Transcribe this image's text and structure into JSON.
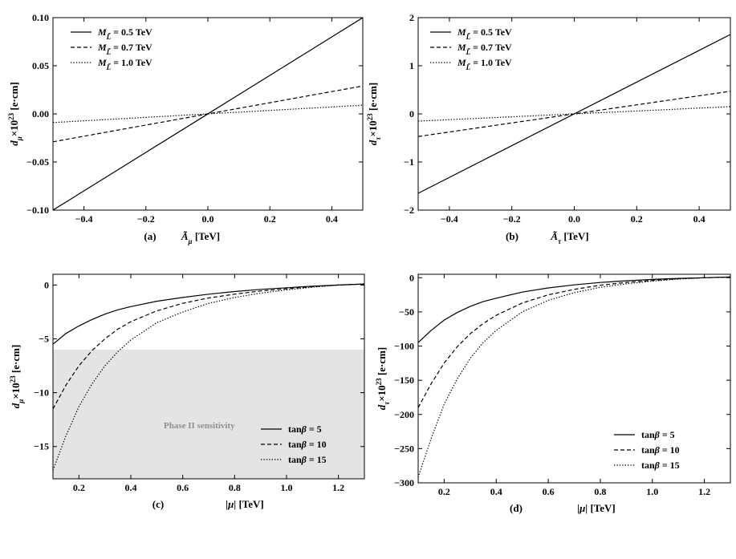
{
  "colors": {
    "curve": "#000000",
    "shade": "#e4e4e4",
    "note": "#909090"
  },
  "chart_data": [
    {
      "type": "line",
      "panel_label": "(a)",
      "xlabel_sym": "Ã",
      "xlabel_sub": "μ",
      "xlabel_unit": "[TeV]",
      "ylabel_sym": "d",
      "ylabel_sub": "μ",
      "ylabel_mid": "×10",
      "ylabel_exp": "23",
      "ylabel_unit": "[e·cm]",
      "xlim": [
        -0.5,
        0.5
      ],
      "ylim": [
        -0.1,
        0.1
      ],
      "xticks": [
        "−0.4",
        "−0.2",
        "0.0",
        "0.2",
        "0.4"
      ],
      "yticks": [
        "−0.10",
        "−0.05",
        "0.00",
        "0.05",
        "0.10"
      ],
      "series": [
        {
          "name_pre": "M",
          "name_sub": "L̃",
          "name_post": " = 0.5 TeV",
          "style": "solid",
          "x": [
            -0.5,
            0.5
          ],
          "y": [
            -0.1,
            0.1
          ]
        },
        {
          "name_pre": "M",
          "name_sub": "L̃",
          "name_post": " = 0.7 TeV",
          "style": "dashed",
          "x": [
            -0.5,
            0.5
          ],
          "y": [
            -0.029,
            0.029
          ]
        },
        {
          "name_pre": "M",
          "name_sub": "L̃",
          "name_post": " = 1.0 TeV",
          "style": "dotted",
          "x": [
            -0.5,
            0.5
          ],
          "y": [
            -0.009,
            0.009
          ]
        }
      ],
      "legend": "top-left"
    },
    {
      "type": "line",
      "panel_label": "(b)",
      "xlabel_sym": "Ã",
      "xlabel_sub": "τ",
      "xlabel_unit": "[TeV]",
      "ylabel_sym": "d",
      "ylabel_sub": "τ",
      "ylabel_mid": "×10",
      "ylabel_exp": "23",
      "ylabel_unit": "[e·cm]",
      "xlim": [
        -0.5,
        0.5
      ],
      "ylim": [
        -2,
        2
      ],
      "xticks": [
        "−0.4",
        "−0.2",
        "0.0",
        "0.2",
        "0.4"
      ],
      "yticks": [
        "−2",
        "−1",
        "0",
        "1",
        "2"
      ],
      "series": [
        {
          "name_pre": "M",
          "name_sub": "L̃",
          "name_post": " = 0.5 TeV",
          "style": "solid",
          "x": [
            -0.5,
            0.5
          ],
          "y": [
            -1.65,
            1.65
          ]
        },
        {
          "name_pre": "M",
          "name_sub": "L̃",
          "name_post": " = 0.7 TeV",
          "style": "dashed",
          "x": [
            -0.5,
            0.5
          ],
          "y": [
            -0.47,
            0.47
          ]
        },
        {
          "name_pre": "M",
          "name_sub": "L̃",
          "name_post": " = 1.0 TeV",
          "style": "dotted",
          "x": [
            -0.5,
            0.5
          ],
          "y": [
            -0.15,
            0.15
          ]
        }
      ],
      "legend": "top-left"
    },
    {
      "type": "line",
      "panel_label": "(c)",
      "xlabel_sym": "|μ|",
      "xlabel_sub": "",
      "xlabel_unit": "[TeV]",
      "ylabel_sym": "d",
      "ylabel_sub": "μ",
      "ylabel_mid": "×10",
      "ylabel_exp": "23",
      "ylabel_unit": "[e·cm]",
      "xlim": [
        0.1,
        1.3
      ],
      "ylim": [
        -18,
        1
      ],
      "xticks": [
        "0.2",
        "0.4",
        "0.6",
        "0.8",
        "1.0",
        "1.2"
      ],
      "yticks": [
        "−15",
        "−10",
        "−5",
        "0"
      ],
      "shaded_region": {
        "y_from": -18,
        "y_to": -6,
        "label": "Phase II sensitivity"
      },
      "series": [
        {
          "name_pre": "tan",
          "name_sub": "β",
          "name_post": " = 5",
          "style": "solid",
          "x": [
            0.1,
            0.15,
            0.2,
            0.25,
            0.3,
            0.35,
            0.4,
            0.5,
            0.6,
            0.7,
            0.8,
            0.9,
            1.0,
            1.1,
            1.2,
            1.3
          ],
          "y": [
            -5.5,
            -4.5,
            -3.8,
            -3.2,
            -2.7,
            -2.3,
            -2.0,
            -1.5,
            -1.15,
            -0.85,
            -0.6,
            -0.4,
            -0.25,
            -0.1,
            0.0,
            0.1
          ]
        },
        {
          "name_pre": "tan",
          "name_sub": "β",
          "name_post": " = 10",
          "style": "dashed",
          "x": [
            0.1,
            0.15,
            0.2,
            0.25,
            0.3,
            0.35,
            0.4,
            0.5,
            0.6,
            0.7,
            0.8,
            0.9,
            1.0,
            1.1,
            1.2,
            1.3
          ],
          "y": [
            -11.5,
            -9.3,
            -7.5,
            -6.1,
            -5.0,
            -4.1,
            -3.4,
            -2.4,
            -1.7,
            -1.2,
            -0.85,
            -0.55,
            -0.35,
            -0.15,
            0.0,
            0.1
          ]
        },
        {
          "name_pre": "tan",
          "name_sub": "β",
          "name_post": " = 15",
          "style": "dotted",
          "x": [
            0.1,
            0.15,
            0.2,
            0.25,
            0.3,
            0.35,
            0.4,
            0.5,
            0.6,
            0.7,
            0.8,
            0.9,
            1.0,
            1.1,
            1.2,
            1.3
          ],
          "y": [
            -17.2,
            -14.0,
            -11.3,
            -9.2,
            -7.5,
            -6.2,
            -5.1,
            -3.5,
            -2.5,
            -1.7,
            -1.15,
            -0.75,
            -0.45,
            -0.2,
            0.0,
            0.1
          ]
        }
      ],
      "legend": "bottom-right"
    },
    {
      "type": "line",
      "panel_label": "(d)",
      "xlabel_sym": "|μ|",
      "xlabel_sub": "",
      "xlabel_unit": "[TeV]",
      "ylabel_sym": "d",
      "ylabel_sub": "τ",
      "ylabel_mid": "×10",
      "ylabel_exp": "23",
      "ylabel_unit": "[e·cm]",
      "xlim": [
        0.1,
        1.3
      ],
      "ylim": [
        -300,
        5
      ],
      "xticks": [
        "0.2",
        "0.4",
        "0.6",
        "0.8",
        "1.0",
        "1.2"
      ],
      "yticks": [
        "−300",
        "−250",
        "−200",
        "−150",
        "−100",
        "−50",
        "0"
      ],
      "series": [
        {
          "name_pre": "tan",
          "name_sub": "β",
          "name_post": " = 5",
          "style": "solid",
          "x": [
            0.1,
            0.15,
            0.2,
            0.25,
            0.3,
            0.35,
            0.4,
            0.5,
            0.6,
            0.7,
            0.8,
            0.9,
            1.0,
            1.1,
            1.2,
            1.3
          ],
          "y": [
            -95,
            -77,
            -62,
            -51,
            -42,
            -35,
            -30,
            -21,
            -15,
            -10.5,
            -7,
            -4.5,
            -2.5,
            -1,
            0,
            1
          ]
        },
        {
          "name_pre": "tan",
          "name_sub": "β",
          "name_post": " = 10",
          "style": "dashed",
          "x": [
            0.1,
            0.15,
            0.2,
            0.25,
            0.3,
            0.35,
            0.4,
            0.5,
            0.6,
            0.7,
            0.8,
            0.9,
            1.0,
            1.1,
            1.2,
            1.3
          ],
          "y": [
            -190,
            -155,
            -125,
            -101,
            -82,
            -67,
            -55,
            -37,
            -25,
            -17,
            -11,
            -7,
            -4,
            -1.5,
            0,
            1
          ]
        },
        {
          "name_pre": "tan",
          "name_sub": "β",
          "name_post": " = 15",
          "style": "dotted",
          "x": [
            0.1,
            0.15,
            0.2,
            0.25,
            0.3,
            0.35,
            0.4,
            0.5,
            0.6,
            0.7,
            0.8,
            0.9,
            1.0,
            1.1,
            1.2,
            1.3
          ],
          "y": [
            -292,
            -235,
            -185,
            -148,
            -118,
            -95,
            -77,
            -50,
            -33,
            -22,
            -14,
            -9,
            -5,
            -2,
            0,
            1
          ]
        }
      ],
      "legend": "bottom-right"
    }
  ]
}
